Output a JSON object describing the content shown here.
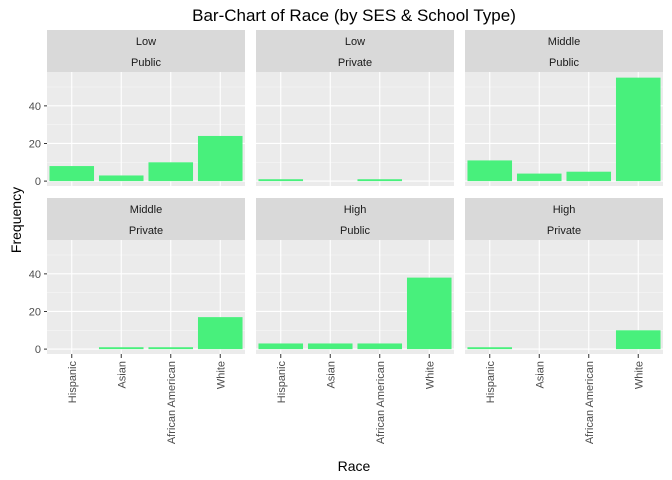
{
  "chart_data": {
    "type": "bar",
    "title": "Bar-Chart of Race (by SES & School Type)",
    "xlabel": "Race",
    "ylabel": "Frequency",
    "categories": [
      "Hispanic",
      "Asian",
      "African American",
      "White"
    ],
    "ylim": [
      0,
      58
    ],
    "yticks": [
      0,
      20,
      40
    ],
    "bar_color": "#48f07c",
    "panels": [
      {
        "ses": "Low",
        "school": "Public",
        "values": [
          8,
          3,
          10,
          24
        ]
      },
      {
        "ses": "Low",
        "school": "Private",
        "values": [
          1,
          0,
          1,
          0
        ]
      },
      {
        "ses": "Middle",
        "school": "Public",
        "values": [
          11,
          4,
          5,
          55
        ]
      },
      {
        "ses": "Middle",
        "school": "Private",
        "values": [
          0,
          1,
          1,
          17
        ]
      },
      {
        "ses": "High",
        "school": "Public",
        "values": [
          3,
          3,
          3,
          38
        ]
      },
      {
        "ses": "High",
        "school": "Private",
        "values": [
          1,
          0,
          0,
          10
        ]
      }
    ],
    "grid": true,
    "legend": "none"
  }
}
